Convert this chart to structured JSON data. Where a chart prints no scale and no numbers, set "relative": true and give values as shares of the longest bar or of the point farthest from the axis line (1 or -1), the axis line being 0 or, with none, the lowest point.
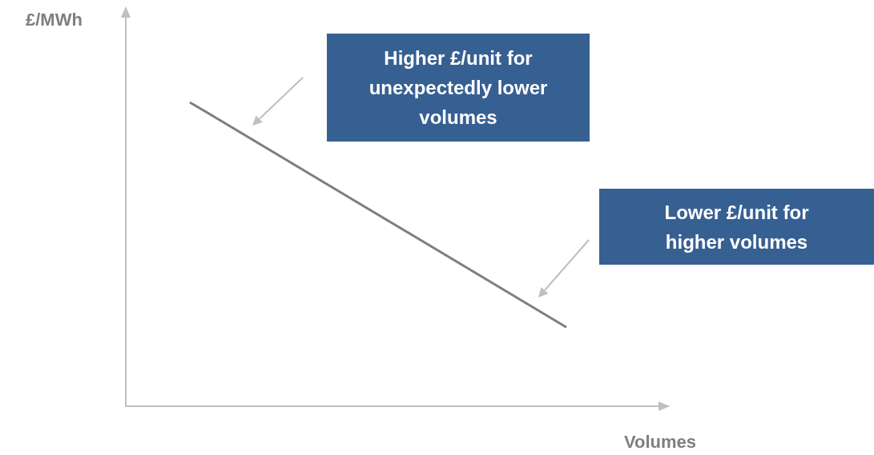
{
  "chart_data": {
    "type": "line",
    "relative": true,
    "xlabel": "Volumes",
    "ylabel": "£/MWh",
    "categories": [
      null,
      null
    ],
    "series": [
      {
        "color": "#7f7f7f",
        "values": [
          1,
          0.26
        ]
      }
    ],
    "marker": "none",
    "line_style": "solid",
    "annotations": [
      "Higher £/unit for unexpectedly lower volumes",
      "Lower £/unit for higher volumes"
    ]
  }
}
